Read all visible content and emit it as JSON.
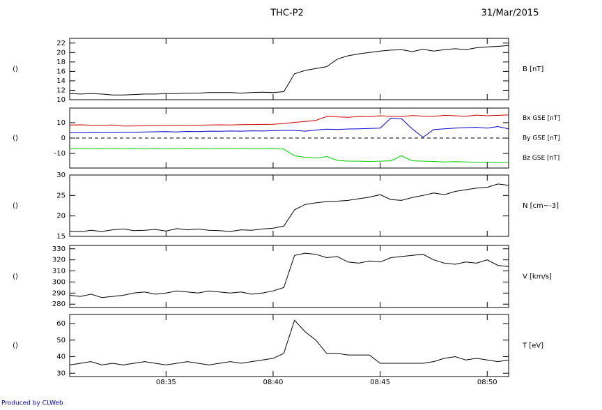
{
  "title": "THC-P2",
  "date": "31/Mar/2015",
  "footer": "Produced by CLWeb",
  "chart_data": [
    {
      "type": "line",
      "ylabel": "()",
      "axis_label": "B [nT]",
      "label_color": "#000000",
      "x": [
        "08:30:30",
        "08:31:00",
        "08:31:30",
        "08:32:00",
        "08:32:30",
        "08:33:00",
        "08:33:30",
        "08:34:00",
        "08:34:30",
        "08:35:00",
        "08:35:30",
        "08:36:00",
        "08:36:30",
        "08:37:00",
        "08:37:30",
        "08:38:00",
        "08:38:30",
        "08:39:00",
        "08:39:30",
        "08:40:00",
        "08:40:30",
        "08:41:00",
        "08:41:30",
        "08:42:00",
        "08:42:30",
        "08:43:00",
        "08:43:30",
        "08:44:00",
        "08:44:30",
        "08:45:00",
        "08:45:30",
        "08:46:00",
        "08:46:30",
        "08:47:00",
        "08:47:30",
        "08:48:00",
        "08:48:30",
        "08:49:00",
        "08:49:30",
        "08:50:00",
        "08:50:30",
        "08:51:00"
      ],
      "series": [
        {
          "name": "B",
          "color": "#000000",
          "values": [
            11.3,
            11.2,
            11.3,
            11.2,
            11.0,
            11.0,
            11.1,
            11.2,
            11.2,
            11.3,
            11.3,
            11.4,
            11.4,
            11.5,
            11.5,
            11.5,
            11.4,
            11.5,
            11.6,
            11.5,
            11.7,
            15.5,
            16.2,
            16.6,
            17.0,
            18.6,
            19.3,
            19.7,
            20.0,
            20.3,
            20.5,
            20.6,
            20.2,
            20.7,
            20.3,
            20.6,
            20.8,
            20.6,
            21.0,
            21.2,
            21.3,
            21.5
          ]
        }
      ],
      "xlim": [
        "08:30:30",
        "08:51:00"
      ],
      "xticks": [
        "08:35",
        "08:40",
        "08:45",
        "08:50"
      ],
      "ylim": [
        10,
        23
      ],
      "yticks": [
        10,
        12,
        14,
        16,
        18,
        20,
        22
      ]
    },
    {
      "type": "line",
      "ylabel": "()",
      "hlines": [
        0
      ],
      "x": [
        "08:30:30",
        "08:31:00",
        "08:31:30",
        "08:32:00",
        "08:32:30",
        "08:33:00",
        "08:33:30",
        "08:34:00",
        "08:34:30",
        "08:35:00",
        "08:35:30",
        "08:36:00",
        "08:36:30",
        "08:37:00",
        "08:37:30",
        "08:38:00",
        "08:38:30",
        "08:39:00",
        "08:39:30",
        "08:40:00",
        "08:40:30",
        "08:41:00",
        "08:41:30",
        "08:42:00",
        "08:42:30",
        "08:43:00",
        "08:43:30",
        "08:44:00",
        "08:44:30",
        "08:45:00",
        "08:45:30",
        "08:46:00",
        "08:46:30",
        "08:47:00",
        "08:47:30",
        "08:48:00",
        "08:48:30",
        "08:49:00",
        "08:49:30",
        "08:50:00",
        "08:50:30",
        "08:51:00"
      ],
      "series": [
        {
          "name": "Bx GSE [nT]",
          "color": "#cc0000",
          "values": [
            8.5,
            8.6,
            8.4,
            8.3,
            8.5,
            7.8,
            7.9,
            8.0,
            8.1,
            8.2,
            8.3,
            8.2,
            8.4,
            8.5,
            8.6,
            8.5,
            8.7,
            8.8,
            8.9,
            9.0,
            9.5,
            10.2,
            10.8,
            11.5,
            14.0,
            13.8,
            13.5,
            14.0,
            13.9,
            14.5,
            14.2,
            14.0,
            14.6,
            14.3,
            14.1,
            14.8,
            14.5,
            14.2,
            14.9,
            14.5,
            14.8,
            15.0
          ]
        },
        {
          "name": "By GSE [nT]",
          "color": "#00cc00",
          "values": [
            -6.8,
            -6.9,
            -7.0,
            -6.8,
            -6.9,
            -7.0,
            -6.8,
            -6.9,
            -6.8,
            -7.0,
            -6.9,
            -6.8,
            -6.9,
            -7.0,
            -6.8,
            -6.9,
            -6.8,
            -7.0,
            -6.9,
            -6.8,
            -7.2,
            -11.5,
            -12.5,
            -13.0,
            -12.0,
            -14.5,
            -15.0,
            -15.0,
            -15.2,
            -15.0,
            -14.8,
            -11.5,
            -14.8,
            -15.0,
            -15.2,
            -15.5,
            -15.3,
            -15.5,
            -15.8,
            -15.6,
            -16.0,
            -15.8
          ]
        },
        {
          "name": "Bz GSE [nT]",
          "color": "#0000cc",
          "values": [
            3.5,
            3.4,
            3.6,
            3.5,
            3.6,
            3.7,
            3.8,
            4.0,
            4.1,
            4.2,
            4.0,
            4.3,
            4.2,
            4.5,
            4.4,
            4.6,
            4.5,
            4.7,
            4.6,
            4.8,
            5.0,
            5.0,
            4.5,
            5.2,
            5.8,
            5.6,
            5.9,
            6.0,
            6.2,
            6.5,
            13.0,
            12.5,
            6.0,
            0.5,
            5.5,
            6.0,
            6.5,
            6.8,
            7.0,
            6.5,
            7.5,
            6.0
          ]
        }
      ],
      "xlim": [
        "08:30:30",
        "08:51:00"
      ],
      "xticks": [
        "08:35",
        "08:40",
        "08:45",
        "08:50"
      ],
      "ylim": [
        -19.5,
        19.5
      ],
      "yticks": [
        -10,
        0,
        10
      ]
    },
    {
      "type": "line",
      "ylabel": "()",
      "axis_label": "N [cm~-3]",
      "label_color": "#000000",
      "x": [
        "08:30:30",
        "08:31:00",
        "08:31:30",
        "08:32:00",
        "08:32:30",
        "08:33:00",
        "08:33:30",
        "08:34:00",
        "08:34:30",
        "08:35:00",
        "08:35:30",
        "08:36:00",
        "08:36:30",
        "08:37:00",
        "08:37:30",
        "08:38:00",
        "08:38:30",
        "08:39:00",
        "08:39:30",
        "08:40:00",
        "08:40:30",
        "08:41:00",
        "08:41:30",
        "08:42:00",
        "08:42:30",
        "08:43:00",
        "08:43:30",
        "08:44:00",
        "08:44:30",
        "08:45:00",
        "08:45:30",
        "08:46:00",
        "08:46:30",
        "08:47:00",
        "08:47:30",
        "08:48:00",
        "08:48:30",
        "08:49:00",
        "08:49:30",
        "08:50:00",
        "08:50:30",
        "08:51:00"
      ],
      "series": [
        {
          "name": "N",
          "color": "#000000",
          "values": [
            16.3,
            16.1,
            16.5,
            16.2,
            16.6,
            16.8,
            16.4,
            16.5,
            16.7,
            16.3,
            16.9,
            16.6,
            16.8,
            16.5,
            16.4,
            16.2,
            16.6,
            16.5,
            16.8,
            17.0,
            17.5,
            21.5,
            22.8,
            23.2,
            23.5,
            23.6,
            23.8,
            24.2,
            24.6,
            25.2,
            24.0,
            23.8,
            24.5,
            25.0,
            25.6,
            25.2,
            26.0,
            26.4,
            26.8,
            27.0,
            27.8,
            27.5
          ]
        }
      ],
      "xlim": [
        "08:30:30",
        "08:51:00"
      ],
      "xticks": [
        "08:35",
        "08:40",
        "08:45",
        "08:50"
      ],
      "ylim": [
        15,
        30
      ],
      "yticks": [
        15,
        20,
        25,
        30
      ]
    },
    {
      "type": "line",
      "ylabel": "()",
      "axis_label": "V [km/s]",
      "label_color": "#000000",
      "x": [
        "08:30:30",
        "08:31:00",
        "08:31:30",
        "08:32:00",
        "08:32:30",
        "08:33:00",
        "08:33:30",
        "08:34:00",
        "08:34:30",
        "08:35:00",
        "08:35:30",
        "08:36:00",
        "08:36:30",
        "08:37:00",
        "08:37:30",
        "08:38:00",
        "08:38:30",
        "08:39:00",
        "08:39:30",
        "08:40:00",
        "08:40:30",
        "08:41:00",
        "08:41:30",
        "08:42:00",
        "08:42:30",
        "08:43:00",
        "08:43:30",
        "08:44:00",
        "08:44:30",
        "08:45:00",
        "08:45:30",
        "08:46:00",
        "08:46:30",
        "08:47:00",
        "08:47:30",
        "08:48:00",
        "08:48:30",
        "08:49:00",
        "08:49:30",
        "08:50:00",
        "08:50:30",
        "08:51:00"
      ],
      "series": [
        {
          "name": "V",
          "color": "#000000",
          "values": [
            288,
            287,
            289,
            286,
            287,
            288,
            290,
            291,
            289,
            290,
            292,
            291,
            290,
            292,
            291,
            290,
            291,
            289,
            290,
            292,
            295,
            324,
            326,
            325,
            322,
            323,
            318,
            317,
            319,
            318,
            322,
            323,
            324,
            325,
            320,
            317,
            316,
            318,
            317,
            320,
            315,
            314
          ]
        }
      ],
      "xlim": [
        "08:30:30",
        "08:51:00"
      ],
      "xticks": [
        "08:35",
        "08:40",
        "08:45",
        "08:50"
      ],
      "ylim": [
        277,
        333
      ],
      "yticks": [
        280,
        290,
        300,
        310,
        320,
        330
      ]
    },
    {
      "type": "line",
      "ylabel": "()",
      "axis_label": "T [eV]",
      "label_color": "#000000",
      "x": [
        "08:30:30",
        "08:31:00",
        "08:31:30",
        "08:32:00",
        "08:32:30",
        "08:33:00",
        "08:33:30",
        "08:34:00",
        "08:34:30",
        "08:35:00",
        "08:35:30",
        "08:36:00",
        "08:36:30",
        "08:37:00",
        "08:37:30",
        "08:38:00",
        "08:38:30",
        "08:39:00",
        "08:39:30",
        "08:40:00",
        "08:40:30",
        "08:41:00",
        "08:41:30",
        "08:42:00",
        "08:42:30",
        "08:43:00",
        "08:43:30",
        "08:44:00",
        "08:44:30",
        "08:45:00",
        "08:45:30",
        "08:46:00",
        "08:46:30",
        "08:47:00",
        "08:47:30",
        "08:48:00",
        "08:48:30",
        "08:49:00",
        "08:49:30",
        "08:50:00",
        "08:50:30",
        "08:51:00"
      ],
      "series": [
        {
          "name": "T",
          "color": "#000000",
          "values": [
            35,
            36,
            37,
            35,
            36,
            35,
            36,
            37,
            36,
            35,
            36,
            37,
            36,
            35,
            36,
            37,
            36,
            37,
            38,
            39,
            42,
            62,
            55,
            50,
            42,
            42,
            41,
            41,
            41,
            36,
            36,
            36,
            36,
            36,
            37,
            39,
            40,
            38,
            39,
            38,
            37,
            38
          ]
        }
      ],
      "xlim": [
        "08:30:30",
        "08:51:00"
      ],
      "xticks": [
        "08:35",
        "08:40",
        "08:45",
        "08:50"
      ],
      "ylim": [
        28,
        65.5
      ],
      "yticks": [
        30,
        40,
        50,
        60
      ]
    }
  ]
}
